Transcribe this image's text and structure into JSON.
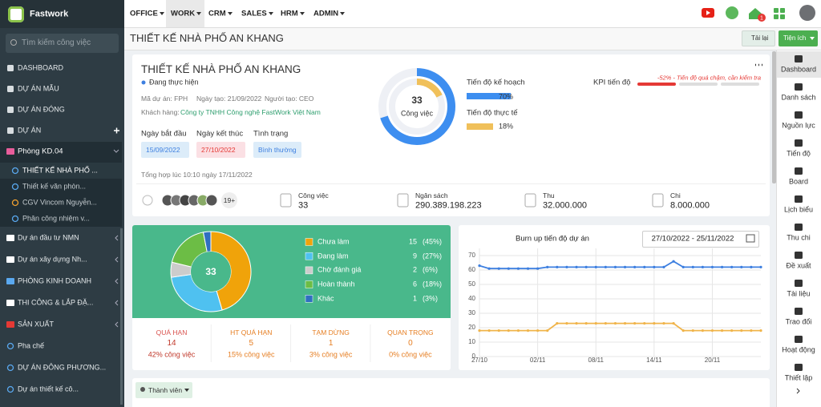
{
  "sidebar": {
    "brand": "Fastwork",
    "search_placeholder": "Tìm kiếm công việc",
    "menu_top": [
      "DASHBOARD",
      "DỰ ÁN MẪU",
      "DỰ ÁN ĐÓNG",
      "DỰ ÁN"
    ],
    "group": "Phòng KD.04",
    "group_items": [
      "THIẾT KẾ NHÀ PHỐ ...",
      "Thiết kế văn phòn...",
      "CGV Vincom Nguyễn...",
      "Phân công nhiệm v..."
    ],
    "menu_bottom": [
      "Dự án đầu tư NMN",
      "Dự án xây dựng Nh...",
      "PHÒNG KINH DOANH",
      "THI CÔNG & LẮP ĐẶ...",
      "SẢN XUẤT",
      "Pha chế",
      "DỰ ÁN ĐÔNG PHƯƠNG...",
      "Dự án thiết kế cô..."
    ]
  },
  "topnav": {
    "menus": [
      "OFFICE",
      "WORK",
      "CRM",
      "SALES",
      "HRM",
      "ADMIN"
    ],
    "badge": 1
  },
  "header": {
    "title": "THIẾT KẾ NHÀ PHỐ AN KHANG",
    "reload": "Tải lại",
    "utilities": "Tiện ích"
  },
  "right_nav": [
    "Dashboard",
    "Danh sách",
    "Nguồn lực",
    "Tiến độ",
    "Board",
    "Lịch biểu",
    "Thu chi",
    "Đề xuất",
    "Tài liệu",
    "Trao đổi",
    "Hoạt động",
    "Thiết lập"
  ],
  "project": {
    "title": "THIẾT KẾ NHÀ PHỐ AN KHANG",
    "status": "Đang thực hiện",
    "code": "Mã dự án: FPH",
    "created": "Ngày tạo: 21/09/2022",
    "creator": "Người tạo: CEO",
    "customer_label": "Khách hàng:",
    "customer": "Công ty TNHH Công nghệ FastWork Việt Nam",
    "start_label": "Ngày bắt đầu",
    "start": "15/09/2022",
    "end_label": "Ngày kết thúc",
    "end": "27/10/2022",
    "state_label": "Tình trạng",
    "state": "Bình thường",
    "updated": "Tổng hợp lúc 10:10 ngày 17/11/2022",
    "task_total": 33,
    "task_label": "Công việc",
    "plan_label": "Tiến độ kế hoạch",
    "plan": {
      "value": 70,
      "label": "70%"
    },
    "actual_label": "Tiến độ thực tế",
    "actual": {
      "value": 18,
      "label": "18%"
    },
    "kpi_label": "KPI tiến độ",
    "kpi_note": "-52% - Tiến độ quá chậm, cần kiểm tra",
    "members": "19+",
    "stats": [
      {
        "label": "Công việc",
        "value": "33"
      },
      {
        "label": "Ngân sách",
        "value": "290.389.198.223"
      },
      {
        "label": "Thu",
        "value": "32.000.000"
      },
      {
        "label": "Chi",
        "value": "8.000.000"
      }
    ]
  },
  "status_chart": {
    "type": "donut",
    "total": 33,
    "categories": [
      "Chưa làm",
      "Đang làm",
      "Chờ đánh giá",
      "Hoàn thành",
      "Khác"
    ],
    "colors": [
      "#f0a30a",
      "#4fc1f0",
      "#cccccc",
      "#6cbd45",
      "#2f6fc1"
    ],
    "values": [
      15,
      9,
      2,
      6,
      1
    ],
    "shares": [
      "(45%)",
      "(27%)",
      "(6%)",
      "(18%)",
      "(3%)"
    ]
  },
  "summary": [
    {
      "label": "QUÁ HẠN",
      "count": 14,
      "note": "42% công việc"
    },
    {
      "label": "HT QUÁ HẠN",
      "count": 5,
      "note": "15% công việc"
    },
    {
      "label": "TẠM DỪNG",
      "count": 1,
      "note": "3% công việc"
    },
    {
      "label": "QUAN TRỌNG",
      "count": 0,
      "note": "0% công việc"
    }
  ],
  "burnup": {
    "type": "line",
    "title": "Burn up tiến độ dự án",
    "date_range": "27/10/2022 - 25/11/2022",
    "x": [
      "27/10",
      null,
      null,
      null,
      null,
      null,
      "02/11",
      null,
      null,
      null,
      null,
      null,
      "08/11",
      null,
      null,
      null,
      null,
      null,
      "14/11",
      null,
      null,
      null,
      null,
      null,
      "20/11",
      null,
      null,
      null,
      null,
      null
    ],
    "ylim": [
      0,
      75
    ],
    "yticks": [
      0,
      10,
      20,
      30,
      40,
      50,
      60,
      70
    ],
    "grid": true,
    "series": [
      {
        "color": "#3d7fe0",
        "values": [
          63,
          61,
          61,
          61,
          61,
          61,
          61,
          62,
          62,
          62,
          62,
          62,
          62,
          62,
          62,
          62,
          62,
          62,
          62,
          62,
          66,
          62,
          62,
          62,
          62,
          62,
          62,
          62,
          62,
          62
        ]
      },
      {
        "color": "#f0b44a",
        "values": [
          18,
          18,
          18,
          18,
          18,
          18,
          18,
          18,
          23,
          23,
          23,
          23,
          23,
          23,
          23,
          23,
          23,
          23,
          23,
          23,
          23,
          18,
          18,
          18,
          18,
          18,
          18,
          18,
          18,
          18
        ]
      }
    ]
  },
  "footer": {
    "members_button": "Thành viên"
  }
}
